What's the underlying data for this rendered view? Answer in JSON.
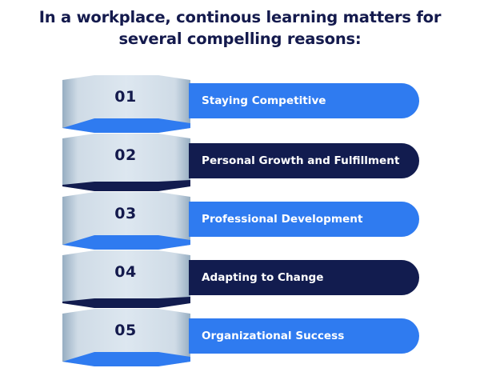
{
  "title_lines": [
    "In a workplace, continous learning matters for",
    "several compelling reasons:"
  ],
  "colors": {
    "title": "#141a4d",
    "accent_blue": "#2f7bf0",
    "navy": "#121c4f",
    "prism_light": "#cfdbe6",
    "prism_dark": "#97aec2"
  },
  "items": [
    {
      "number": "01",
      "label": "Staying Competitive",
      "style": "blue"
    },
    {
      "number": "02",
      "label": "Personal Growth and Fulfillment",
      "style": "navy"
    },
    {
      "number": "03",
      "label": "Professional Development",
      "style": "blue"
    },
    {
      "number": "04",
      "label": "Adapting to Change",
      "style": "navy"
    },
    {
      "number": "05",
      "label": "Organizational Success",
      "style": "blue"
    }
  ]
}
